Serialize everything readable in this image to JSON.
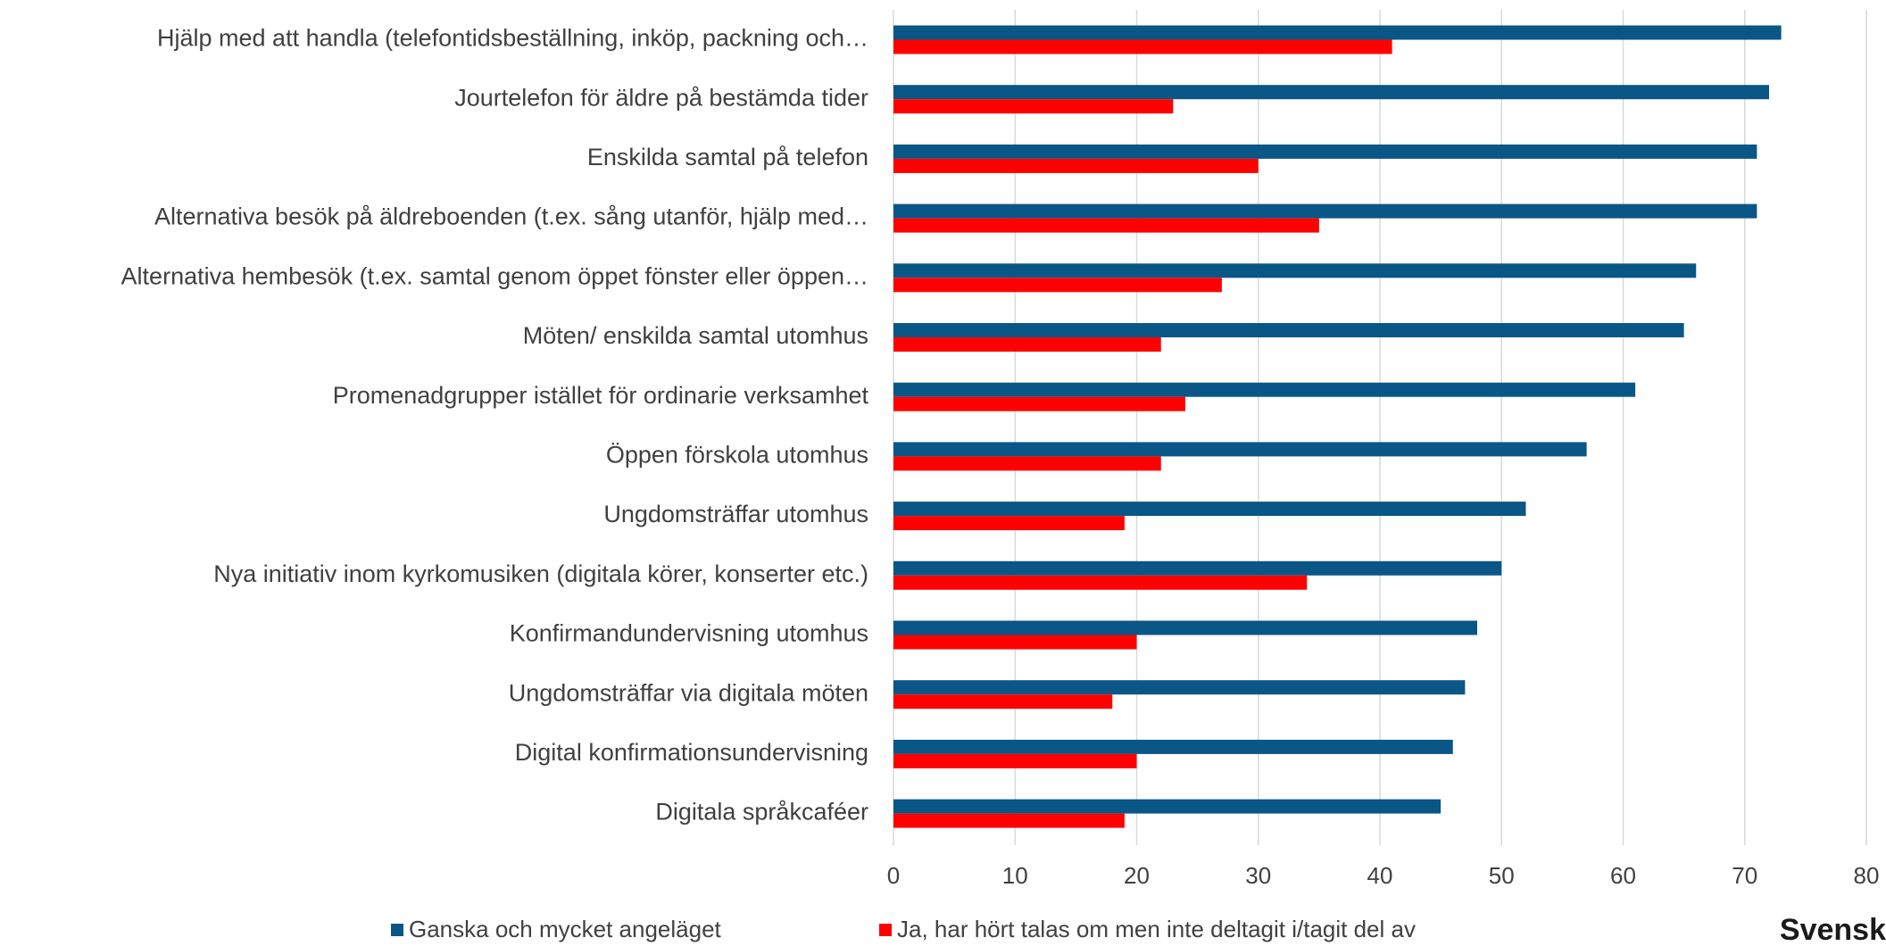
{
  "chart_data": {
    "type": "barh",
    "categories": [
      "Hjälp med att handla (telefontidsbeställning, inköp, packning och…",
      "Jourtelefon för äldre på bestämda tider",
      "Enskilda samtal på telefon",
      "Alternativa besök på äldreboenden (t.ex. sång utanför, hjälp med…",
      "Alternativa hembesök (t.ex. samtal genom öppet fönster eller öppen…",
      "Möten/ enskilda samtal utomhus",
      "Promenadgrupper istället för ordinarie verksamhet",
      "Öppen förskola utomhus",
      "Ungdomsträffar utomhus",
      "Nya initiativ inom kyrkomusiken (digitala körer, konserter etc.)",
      "Konfirmandundervisning utomhus",
      "Ungdomsträffar via digitala möten",
      "Digital konfirmationsundervisning",
      "Digitala språkcaféer"
    ],
    "series": [
      {
        "name": "Ganska och mycket angeläget",
        "color": "#0a5686",
        "values": [
          73,
          72,
          71,
          71,
          66,
          65,
          61,
          57,
          52,
          50,
          48,
          47,
          46,
          45
        ]
      },
      {
        "name": "Ja, har hört talas om men inte deltagit i/tagit del av",
        "color": "#ff0000",
        "values": [
          41,
          23,
          30,
          35,
          27,
          22,
          24,
          22,
          19,
          34,
          20,
          18,
          20,
          19
        ]
      }
    ],
    "xlim": [
      0,
      80
    ],
    "xticks": [
      0,
      10,
      20,
      30,
      40,
      50,
      60,
      70,
      80
    ],
    "grid": true,
    "legend": "bottom",
    "logo": "Svensk"
  }
}
